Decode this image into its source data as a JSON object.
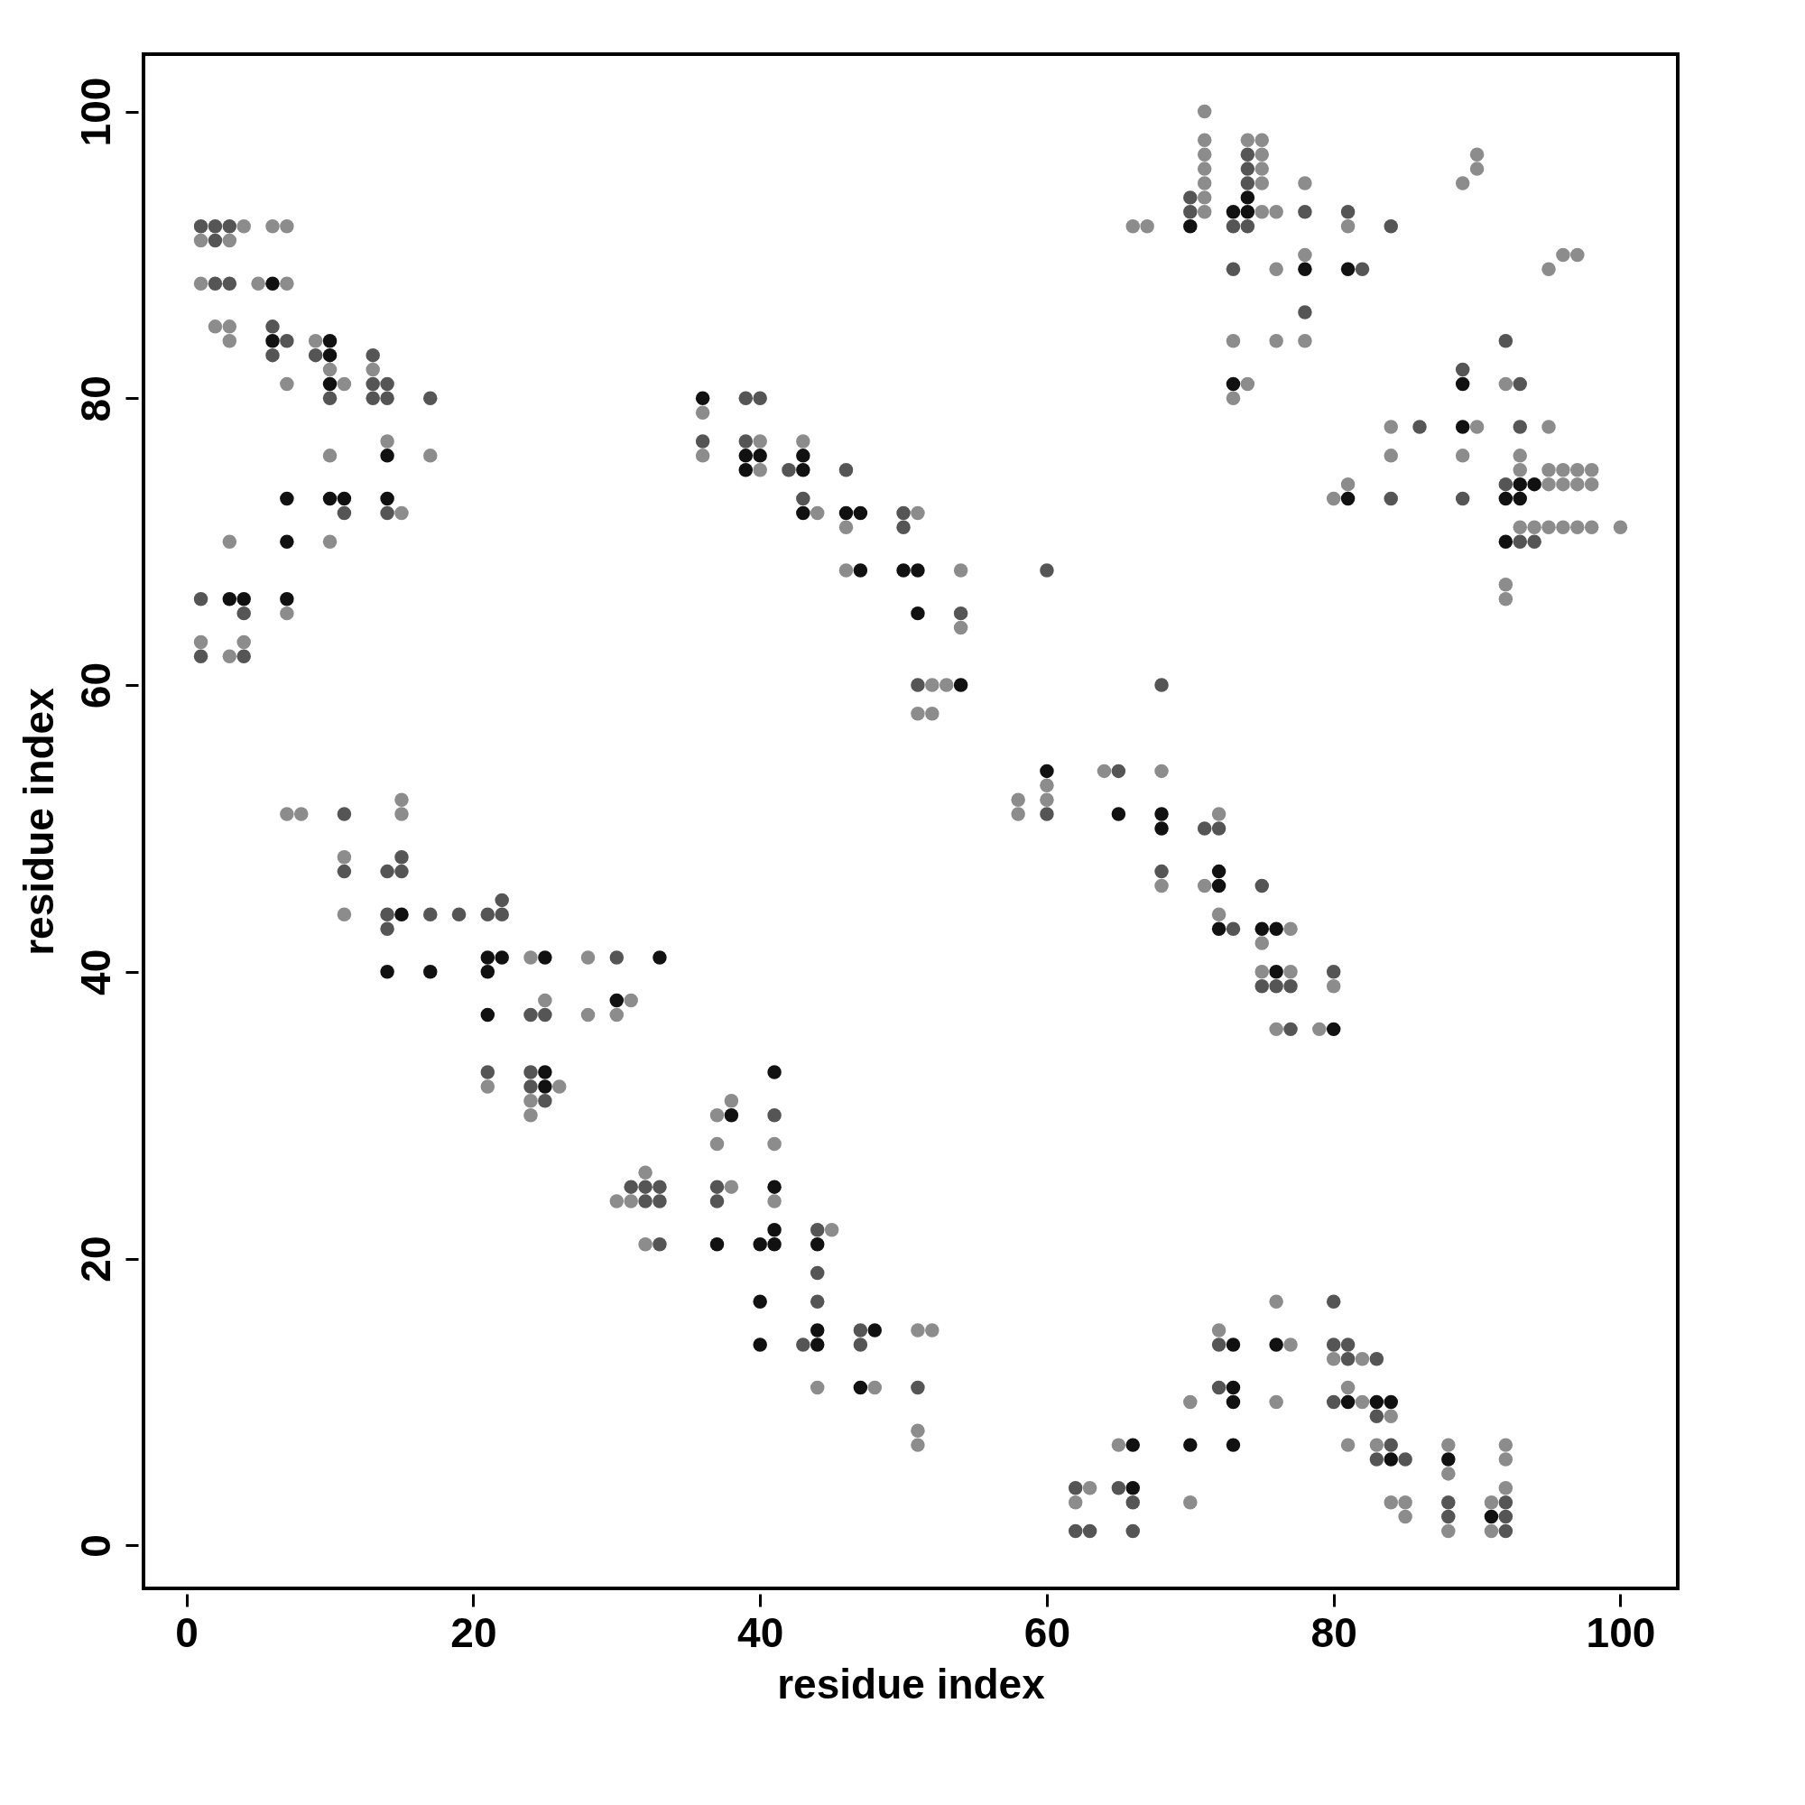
{
  "chart_data": {
    "type": "scatter",
    "xlabel": "residue index",
    "ylabel": "residue index",
    "xlim": [
      -3,
      104
    ],
    "ylim": [
      -3,
      104
    ],
    "xticks": [
      0,
      20,
      40,
      60,
      80,
      100
    ],
    "yticks": [
      0,
      20,
      40,
      60,
      80,
      100
    ],
    "grid": false,
    "marker": "circle",
    "series": [
      {
        "color": "#8c8c8c",
        "x": [
          4,
          6,
          7,
          1,
          3,
          1,
          5,
          7,
          2,
          3,
          3,
          9,
          10,
          13,
          7,
          11,
          14,
          10,
          17,
          15,
          3,
          10,
          7,
          1,
          4,
          3,
          7,
          8,
          15,
          15,
          11,
          11,
          24,
          28,
          25,
          31,
          28,
          30,
          21,
          26,
          24,
          24,
          38,
          37,
          37,
          41,
          32,
          38,
          30,
          31,
          41,
          45,
          32,
          51,
          52,
          44,
          48,
          51,
          51,
          36,
          40,
          43,
          36,
          40,
          44,
          51,
          46,
          46,
          54,
          54,
          52,
          53,
          51,
          52,
          64,
          68,
          60,
          58,
          60,
          58,
          72,
          68,
          71,
          72,
          77,
          75,
          75,
          77,
          80,
          76,
          79,
          76,
          72,
          77,
          80,
          82,
          81,
          70,
          76,
          82,
          84,
          65,
          81,
          83,
          88,
          92,
          92,
          88,
          63,
          92,
          62,
          70,
          84,
          85,
          91,
          85,
          88,
          91,
          71,
          71,
          74,
          75,
          71,
          75,
          90,
          71,
          75,
          90,
          71,
          75,
          78,
          89,
          71,
          71,
          75,
          76,
          66,
          67,
          81,
          78,
          96,
          97,
          76,
          95,
          73,
          76,
          78,
          74,
          92,
          73,
          84,
          90,
          95,
          84,
          89,
          93,
          93,
          95,
          96,
          97,
          98,
          81,
          95,
          96,
          97,
          98,
          80,
          93,
          94,
          95,
          96,
          97,
          98,
          100,
          92,
          92
        ],
        "values": [
          92,
          92,
          92,
          91,
          91,
          88,
          88,
          88,
          85,
          85,
          84,
          84,
          82,
          82,
          81,
          81,
          77,
          76,
          76,
          72,
          70,
          70,
          65,
          63,
          63,
          62,
          51,
          51,
          51,
          52,
          48,
          44,
          41,
          41,
          38,
          38,
          37,
          37,
          32,
          32,
          31,
          30,
          31,
          30,
          28,
          28,
          26,
          25,
          24,
          24,
          24,
          22,
          21,
          15,
          15,
          11,
          11,
          8,
          7,
          79,
          77,
          77,
          76,
          75,
          72,
          72,
          71,
          68,
          68,
          64,
          60,
          60,
          58,
          58,
          54,
          54,
          53,
          52,
          52,
          51,
          51,
          46,
          46,
          44,
          43,
          42,
          40,
          40,
          39,
          36,
          36,
          17,
          15,
          14,
          13,
          13,
          11,
          10,
          10,
          10,
          9,
          7,
          7,
          7,
          7,
          7,
          6,
          5,
          4,
          4,
          3,
          3,
          3,
          3,
          3,
          2,
          1,
          1,
          100,
          98,
          98,
          98,
          97,
          97,
          97,
          96,
          96,
          96,
          95,
          95,
          95,
          95,
          94,
          93,
          93,
          93,
          92,
          92,
          92,
          90,
          90,
          90,
          89,
          89,
          84,
          84,
          84,
          81,
          81,
          80,
          78,
          78,
          78,
          76,
          76,
          76,
          75,
          75,
          75,
          75,
          75,
          74,
          74,
          74,
          74,
          74,
          73,
          71,
          71,
          71,
          71,
          71,
          71,
          71,
          67,
          66
        ]
      },
      {
        "color": "#555555",
        "x": [
          1,
          2,
          3,
          2,
          2,
          3,
          6,
          7,
          6,
          9,
          13,
          13,
          14,
          10,
          13,
          14,
          17,
          11,
          14,
          1,
          4,
          1,
          4,
          11,
          15,
          11,
          14,
          15,
          14,
          17,
          19,
          21,
          22,
          22,
          14,
          30,
          24,
          25,
          21,
          24,
          24,
          25,
          41,
          31,
          32,
          33,
          37,
          32,
          33,
          37,
          44,
          33,
          44,
          44,
          47,
          43,
          47,
          51,
          39,
          40,
          36,
          39,
          42,
          46,
          43,
          50,
          50,
          54,
          51,
          60,
          68,
          65,
          60,
          71,
          72,
          68,
          75,
          73,
          80,
          75,
          76,
          77,
          77,
          80,
          72,
          80,
          81,
          81,
          83,
          72,
          80,
          83,
          84,
          83,
          85,
          62,
          65,
          66,
          88,
          92,
          88,
          92,
          62,
          63,
          66,
          92,
          74,
          74,
          74,
          70,
          70,
          78,
          81,
          73,
          74,
          84,
          73,
          82,
          78,
          92,
          89,
          93,
          86,
          93,
          92,
          84,
          89,
          93,
          94
        ],
        "values": [
          92,
          92,
          92,
          91,
          88,
          88,
          85,
          84,
          83,
          83,
          83,
          81,
          81,
          80,
          80,
          80,
          80,
          72,
          72,
          66,
          65,
          62,
          62,
          51,
          48,
          47,
          47,
          47,
          44,
          44,
          44,
          44,
          44,
          45,
          43,
          41,
          37,
          37,
          33,
          33,
          32,
          31,
          30,
          25,
          25,
          25,
          25,
          24,
          24,
          24,
          22,
          21,
          19,
          17,
          15,
          14,
          14,
          11,
          80,
          80,
          77,
          77,
          75,
          75,
          73,
          72,
          71,
          65,
          60,
          68,
          60,
          54,
          51,
          50,
          50,
          47,
          46,
          43,
          40,
          39,
          39,
          39,
          36,
          17,
          14,
          14,
          14,
          13,
          13,
          11,
          10,
          9,
          7,
          6,
          6,
          4,
          4,
          3,
          3,
          3,
          2,
          2,
          1,
          1,
          1,
          1,
          97,
          96,
          95,
          94,
          93,
          93,
          93,
          92,
          92,
          92,
          89,
          89,
          86,
          84,
          82,
          81,
          78,
          78,
          74,
          73,
          73,
          70,
          70
        ]
      },
      {
        "color": "#111111",
        "x": [
          6,
          6,
          10,
          10,
          10,
          14,
          7,
          10,
          11,
          14,
          7,
          3,
          4,
          7,
          15,
          14,
          17,
          21,
          21,
          22,
          25,
          33,
          30,
          21,
          25,
          25,
          41,
          38,
          41,
          41,
          37,
          40,
          41,
          44,
          40,
          44,
          48,
          40,
          44,
          47,
          36,
          39,
          40,
          43,
          39,
          43,
          43,
          46,
          47,
          47,
          50,
          51,
          51,
          54,
          60,
          65,
          68,
          68,
          72,
          72,
          72,
          75,
          76,
          76,
          80,
          73,
          76,
          73,
          73,
          81,
          83,
          84,
          66,
          70,
          73,
          84,
          88,
          66,
          91,
          74,
          73,
          74,
          70,
          78,
          81,
          73,
          89,
          89,
          93,
          94,
          81,
          92,
          93,
          92
        ],
        "values": [
          88,
          84,
          84,
          83,
          81,
          76,
          73,
          73,
          73,
          73,
          70,
          66,
          66,
          66,
          44,
          40,
          40,
          40,
          41,
          41,
          41,
          41,
          38,
          37,
          33,
          32,
          33,
          30,
          25,
          22,
          21,
          21,
          21,
          21,
          17,
          15,
          15,
          14,
          14,
          11,
          80,
          76,
          76,
          76,
          75,
          75,
          72,
          72,
          72,
          68,
          68,
          68,
          65,
          60,
          54,
          51,
          51,
          50,
          47,
          46,
          43,
          43,
          43,
          40,
          36,
          14,
          14,
          11,
          10,
          10,
          10,
          10,
          7,
          7,
          7,
          6,
          6,
          4,
          2,
          94,
          93,
          93,
          92,
          89,
          89,
          81,
          81,
          78,
          74,
          74,
          73,
          73,
          73,
          70
        ]
      }
    ]
  }
}
